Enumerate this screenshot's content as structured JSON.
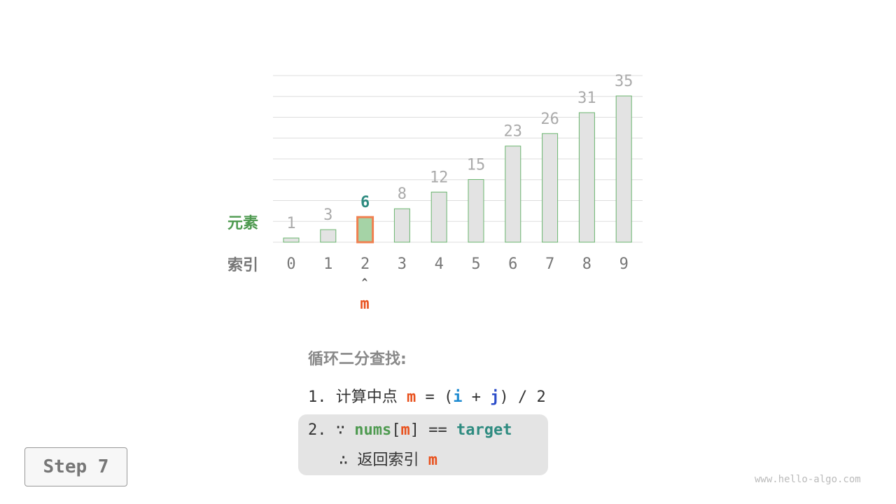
{
  "chart_data": {
    "type": "bar",
    "categories": [
      "0",
      "1",
      "2",
      "3",
      "4",
      "5",
      "6",
      "7",
      "8",
      "9"
    ],
    "values": [
      1,
      3,
      6,
      8,
      12,
      15,
      23,
      26,
      31,
      35
    ],
    "highlight_index": 2,
    "row_labels": {
      "value": "元素",
      "index": "索引"
    },
    "pointer_label": "m",
    "pointer_arrow": "^",
    "colors": {
      "bar": "#e3e3e3",
      "bar_border": "#6ab56e",
      "highlight_fill": "#a5d3a6",
      "highlight_border": "#f08050",
      "highlight_text": "#2e8b80",
      "value_text": "#aaaaaa",
      "index_text": "#777777",
      "pointer": "#e8501c"
    }
  },
  "steps": {
    "title": "循环二分查找:",
    "line1": {
      "num": "1.",
      "text": "计算中点",
      "m": "m",
      "eq": "= (",
      "i": "i",
      "plus": "+",
      "j": "j",
      "rest": ") / 2"
    },
    "line2": {
      "num": "2.",
      "because": "∵",
      "nums": "nums",
      "lb": "[",
      "m": "m",
      "rb": "]",
      "eq": "==",
      "target": "target"
    },
    "line3": {
      "therefore": "∴",
      "text": "返回索引",
      "m": "m"
    }
  },
  "step_button": "Step 7",
  "watermark": "www.hello-algo.com"
}
